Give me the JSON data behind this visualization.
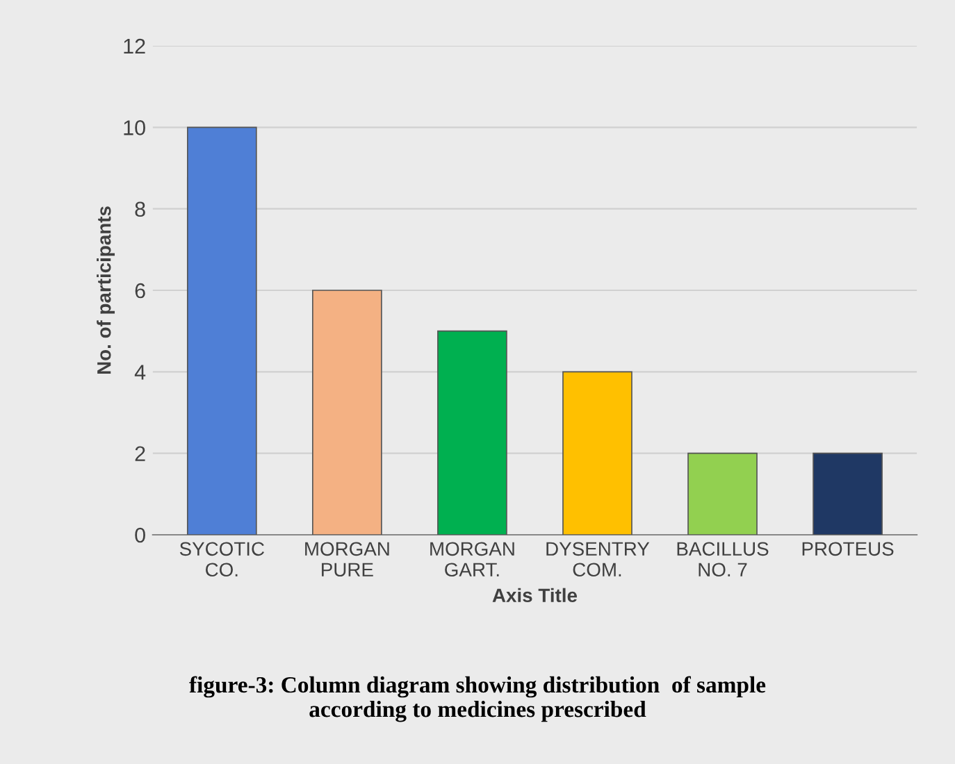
{
  "chart_data": {
    "type": "bar",
    "categories": [
      "SYCOTIC\nCO.",
      "MORGAN\nPURE",
      "MORGAN\nGART.",
      "DYSENTRY\nCOM.",
      "BACILLUS\nNO. 7",
      "PROTEUS"
    ],
    "values": [
      10,
      6,
      5,
      4,
      2,
      2
    ],
    "colors": [
      "#4f7fd6",
      "#f4b183",
      "#00b050",
      "#ffc000",
      "#92d050",
      "#1f3864"
    ],
    "ylabel": "No. of participants",
    "xlabel": "Axis Title",
    "ylim": [
      0,
      12
    ],
    "yticks": [
      0,
      2,
      4,
      6,
      8,
      10,
      12
    ],
    "grid": "y",
    "annotations": [
      "figure-3: Column diagram showing distribution  of sample\naccording to medicines prescribed"
    ]
  }
}
